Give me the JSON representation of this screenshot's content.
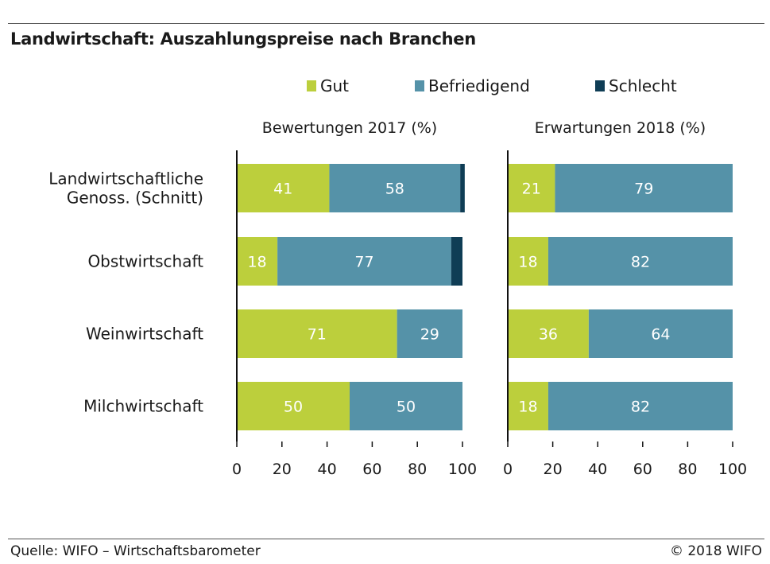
{
  "header": {
    "title": "Landwirtschaft: Auszahlungspreise nach Branchen"
  },
  "footer": {
    "source": "Quelle: WIFO – Wirtschaftsbarometer",
    "copyright": "© 2018 WIFO"
  },
  "colors": {
    "Gut": "#bccf3c",
    "Befriedigend": "#5592a8",
    "Schlecht": "#0f3d55"
  },
  "chart_data": {
    "type": "bar",
    "orientation": "horizontal",
    "stacked": true,
    "categories": [
      "Landwirtschaftliche Genoss. (Schnitt)",
      "Obstwirtschaft",
      "Weinwirtschaft",
      "Milchwirtschaft"
    ],
    "category_lines": [
      [
        "Landwirtschaftliche",
        "Genoss. (Schnitt)"
      ],
      [
        "Obstwirtschaft"
      ],
      [
        "Weinwirtschaft"
      ],
      [
        "Milchwirtschaft"
      ]
    ],
    "legend": [
      "Gut",
      "Befriedigend",
      "Schlecht"
    ],
    "legend_position": "top",
    "panels": [
      {
        "title": "Bewertungen 2017 (%)",
        "xlim": [
          0,
          100
        ],
        "ticks": [
          0,
          20,
          40,
          60,
          80,
          100
        ],
        "series": [
          {
            "name": "Gut",
            "values": [
              41,
              18,
              71,
              50
            ]
          },
          {
            "name": "Befriedigend",
            "values": [
              58,
              77,
              29,
              50
            ]
          },
          {
            "name": "Schlecht",
            "values": [
              2,
              5,
              0,
              0
            ]
          }
        ]
      },
      {
        "title": "Erwartungen 2018 (%)",
        "xlim": [
          0,
          100
        ],
        "ticks": [
          0,
          20,
          40,
          60,
          80,
          100
        ],
        "series": [
          {
            "name": "Gut",
            "values": [
              21,
              18,
              36,
              18
            ]
          },
          {
            "name": "Befriedigend",
            "values": [
              79,
              82,
              64,
              82
            ]
          },
          {
            "name": "Schlecht",
            "values": [
              0,
              0,
              0,
              0
            ]
          }
        ]
      }
    ],
    "label_series": [
      "Gut",
      "Befriedigend"
    ],
    "grid": false
  }
}
